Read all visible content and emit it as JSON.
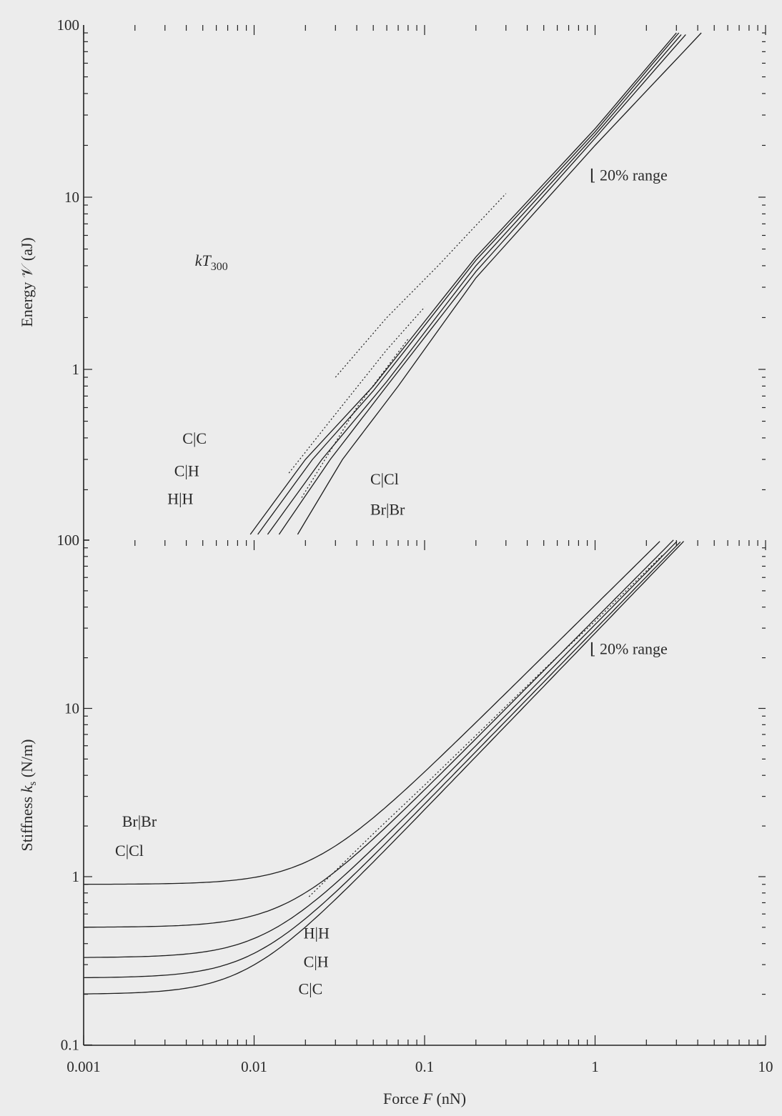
{
  "chart_data": [
    {
      "type": "line",
      "panel": "top",
      "ylabel": "Energy 𝒱 (aJ)",
      "yscale": "log",
      "xscale": "log",
      "xlim": [
        0.001,
        10
      ],
      "ylim": [
        0.1,
        100
      ],
      "y_ticks": [
        {
          "value": 1,
          "label": "1"
        },
        {
          "value": 10,
          "label": "10"
        },
        {
          "value": 100,
          "label": "100"
        }
      ],
      "annotations": [
        {
          "text": "kT",
          "sub": "300",
          "x": 0.0045,
          "y": 4.0
        },
        {
          "text": "C|C",
          "x": 0.0038,
          "y": 0.37
        },
        {
          "text": "C|H",
          "x": 0.0034,
          "y": 0.24
        },
        {
          "text": "H|H",
          "x": 0.0031,
          "y": 0.165
        },
        {
          "text": "C|Cl",
          "x": 0.048,
          "y": 0.215
        },
        {
          "text": "Br|Br",
          "x": 0.048,
          "y": 0.143
        },
        {
          "text": "⌊ 20% range",
          "x": 0.93,
          "y": 12.5
        }
      ],
      "series": [
        {
          "style": "solid",
          "points": [
            [
              0.0095,
              0.11
            ],
            [
              0.02,
              0.3
            ],
            [
              0.05,
              0.8
            ],
            [
              0.2,
              4.5
            ],
            [
              1,
              25
            ],
            [
              3,
              90
            ]
          ]
        },
        {
          "style": "solid",
          "points": [
            [
              0.0105,
              0.11
            ],
            [
              0.022,
              0.3
            ],
            [
              0.05,
              0.75
            ],
            [
              0.2,
              4.3
            ],
            [
              1,
              24
            ],
            [
              3.1,
              90
            ]
          ]
        },
        {
          "style": "solid",
          "points": [
            [
              0.012,
              0.11
            ],
            [
              0.025,
              0.3
            ],
            [
              0.06,
              0.85
            ],
            [
              0.2,
              4.0
            ],
            [
              1,
              23
            ],
            [
              3.2,
              88
            ]
          ]
        },
        {
          "style": "solid",
          "points": [
            [
              0.014,
              0.11
            ],
            [
              0.028,
              0.3
            ],
            [
              0.06,
              0.8
            ],
            [
              0.2,
              3.7
            ],
            [
              1,
              22
            ],
            [
              3.4,
              88
            ]
          ]
        },
        {
          "style": "solid",
          "points": [
            [
              0.018,
              0.11
            ],
            [
              0.033,
              0.3
            ],
            [
              0.07,
              0.8
            ],
            [
              0.2,
              3.4
            ],
            [
              1,
              20
            ],
            [
              4.2,
              90
            ]
          ]
        },
        {
          "style": "dashed",
          "points": [
            [
              0.016,
              0.25
            ],
            [
              0.03,
              0.55
            ],
            [
              0.06,
              1.3
            ],
            [
              0.1,
              2.3
            ]
          ]
        },
        {
          "style": "dashed",
          "points": [
            [
              0.019,
              0.18
            ],
            [
              0.04,
              0.6
            ],
            [
              0.08,
              1.5
            ]
          ]
        },
        {
          "style": "dashed",
          "points": [
            [
              0.03,
              0.9
            ],
            [
              0.06,
              2.0
            ],
            [
              0.12,
              4.0
            ],
            [
              0.3,
              10.5
            ]
          ]
        }
      ]
    },
    {
      "type": "line",
      "panel": "bottom",
      "ylabel": "Stiffness k",
      "ylabel_sub": "s",
      "ylabel_unit": "(N/m)",
      "xlabel": "Force F (nN)",
      "yscale": "log",
      "xscale": "log",
      "xlim": [
        0.001,
        10
      ],
      "ylim": [
        0.1,
        100
      ],
      "x_ticks": [
        {
          "value": 0.001,
          "label": "0.001"
        },
        {
          "value": 0.01,
          "label": "0.01"
        },
        {
          "value": 0.1,
          "label": "0.1"
        },
        {
          "value": 1,
          "label": "1"
        },
        {
          "value": 10,
          "label": "10"
        }
      ],
      "y_ticks": [
        {
          "value": 0.1,
          "label": "0.1"
        },
        {
          "value": 1,
          "label": "1"
        },
        {
          "value": 10,
          "label": "10"
        },
        {
          "value": 100,
          "label": "100"
        }
      ],
      "annotations": [
        {
          "text": "Br|Br",
          "x": 0.00168,
          "y": 1.98
        },
        {
          "text": "C|Cl",
          "x": 0.00153,
          "y": 1.33
        },
        {
          "text": "H|H",
          "x": 0.0195,
          "y": 0.43
        },
        {
          "text": "C|H",
          "x": 0.0195,
          "y": 0.29
        },
        {
          "text": "C|C",
          "x": 0.0182,
          "y": 0.2
        },
        {
          "text": "⌊ 20% range",
          "x": 0.93,
          "y": 21
        }
      ],
      "series": [
        {
          "k0": 0.9,
          "a": 41.0,
          "b": 1.0
        },
        {
          "k0": 0.5,
          "a": 34.0,
          "b": 1.02
        },
        {
          "k0": 0.33,
          "a": 31.5,
          "b": 1.03
        },
        {
          "k0": 0.25,
          "a": 29.5,
          "b": 1.04
        },
        {
          "k0": 0.2,
          "a": 28.0,
          "b": 1.05
        }
      ],
      "dashed_series": [
        {
          "points": [
            [
              0.021,
              0.76
            ],
            [
              0.05,
              1.8
            ],
            [
              0.1,
              3.5
            ],
            [
              0.5,
              17
            ],
            [
              1,
              33
            ],
            [
              2.5,
              82
            ]
          ]
        }
      ]
    }
  ]
}
